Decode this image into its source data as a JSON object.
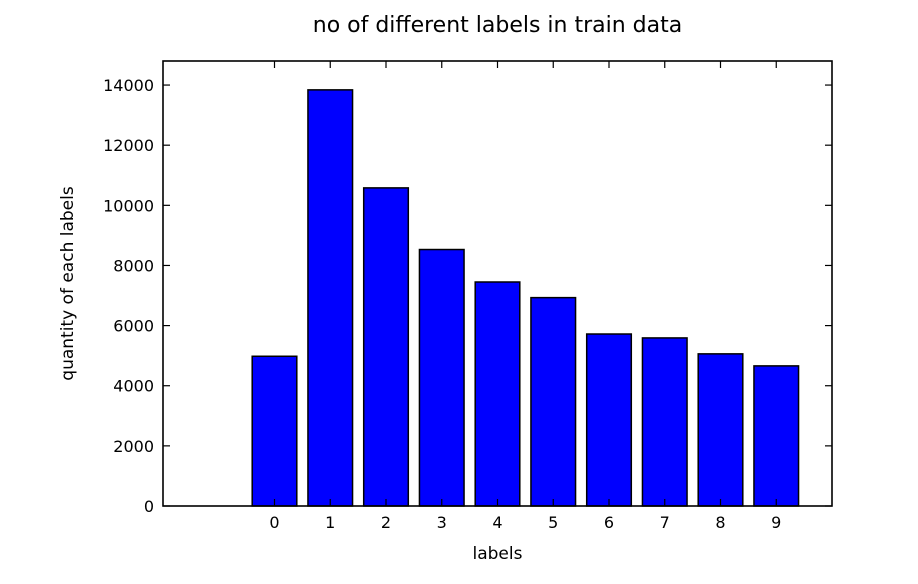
{
  "chart_data": {
    "type": "bar",
    "title": "no of different labels in train data",
    "xlabel": "labels",
    "ylabel": "quantity of each labels",
    "categories": [
      "0",
      "1",
      "2",
      "3",
      "4",
      "5",
      "6",
      "7",
      "8",
      "9"
    ],
    "values": [
      4980,
      13840,
      10580,
      8530,
      7450,
      6930,
      5720,
      5590,
      5060,
      4660
    ],
    "xlim": [
      -2,
      10
    ],
    "ylim": [
      0,
      14800
    ],
    "yticks": [
      0,
      2000,
      4000,
      6000,
      8000,
      10000,
      12000,
      14000
    ],
    "ytick_labels": [
      "0",
      "2000",
      "4000",
      "6000",
      "8000",
      "10000",
      "12000",
      "14000"
    ],
    "bar_color": "#0000ff",
    "edge_color": "#000000",
    "grid": false,
    "legend": false
  }
}
